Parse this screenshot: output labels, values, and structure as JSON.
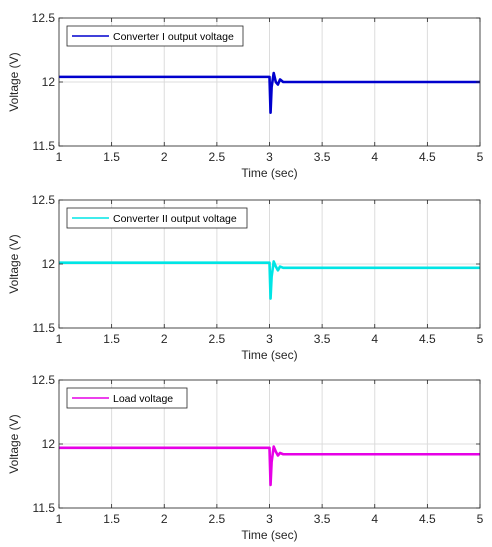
{
  "chart_data": [
    {
      "type": "line",
      "xlabel": "Time (sec)",
      "ylabel": "Voltage (V)",
      "xlim": [
        1,
        5
      ],
      "ylim": [
        11.5,
        12.5
      ],
      "xticks": [
        "1",
        "1.5",
        "2",
        "2.5",
        "3",
        "3.5",
        "4",
        "4.5",
        "5"
      ],
      "yticks": [
        "11.5",
        "12",
        "12.5"
      ],
      "grid": true,
      "legend_position": "top-left",
      "series": [
        {
          "name": "Converter I output voltage",
          "color": "#0000cd",
          "x": [
            1,
            3,
            3.01,
            3.02,
            3.04,
            3.06,
            3.08,
            3.1,
            3.13,
            3.16,
            3.2,
            5
          ],
          "y": [
            12.04,
            12.04,
            11.76,
            11.96,
            12.07,
            12.0,
            11.98,
            12.02,
            12.0,
            12.0,
            12.0,
            12.0
          ]
        }
      ]
    },
    {
      "type": "line",
      "xlabel": "Time (sec)",
      "ylabel": "Voltage (V)",
      "xlim": [
        1,
        5
      ],
      "ylim": [
        11.5,
        12.5
      ],
      "xticks": [
        "1",
        "1.5",
        "2",
        "2.5",
        "3",
        "3.5",
        "4",
        "4.5",
        "5"
      ],
      "yticks": [
        "11.5",
        "12",
        "12.5"
      ],
      "grid": true,
      "legend_position": "top-left",
      "series": [
        {
          "name": "Converter II output voltage",
          "color": "#00e5e5",
          "x": [
            1,
            3,
            3.01,
            3.02,
            3.04,
            3.06,
            3.08,
            3.1,
            3.13,
            3.16,
            3.2,
            5
          ],
          "y": [
            12.01,
            12.01,
            11.73,
            11.9,
            12.02,
            11.98,
            11.95,
            11.98,
            11.97,
            11.97,
            11.97,
            11.97
          ]
        }
      ]
    },
    {
      "type": "line",
      "xlabel": "Time (sec)",
      "ylabel": "Voltage (V)",
      "xlim": [
        1,
        5
      ],
      "ylim": [
        11.5,
        12.5
      ],
      "xticks": [
        "1",
        "1.5",
        "2",
        "2.5",
        "3",
        "3.5",
        "4",
        "4.5",
        "5"
      ],
      "yticks": [
        "11.5",
        "12",
        "12.5"
      ],
      "grid": true,
      "legend_position": "top-left",
      "series": [
        {
          "name": "Load voltage",
          "color": "#e600e6",
          "x": [
            1,
            3,
            3.01,
            3.02,
            3.04,
            3.06,
            3.08,
            3.1,
            3.13,
            3.16,
            3.2,
            5
          ],
          "y": [
            11.97,
            11.97,
            11.68,
            11.86,
            11.98,
            11.94,
            11.91,
            11.93,
            11.92,
            11.92,
            11.92,
            11.92
          ]
        }
      ]
    }
  ]
}
